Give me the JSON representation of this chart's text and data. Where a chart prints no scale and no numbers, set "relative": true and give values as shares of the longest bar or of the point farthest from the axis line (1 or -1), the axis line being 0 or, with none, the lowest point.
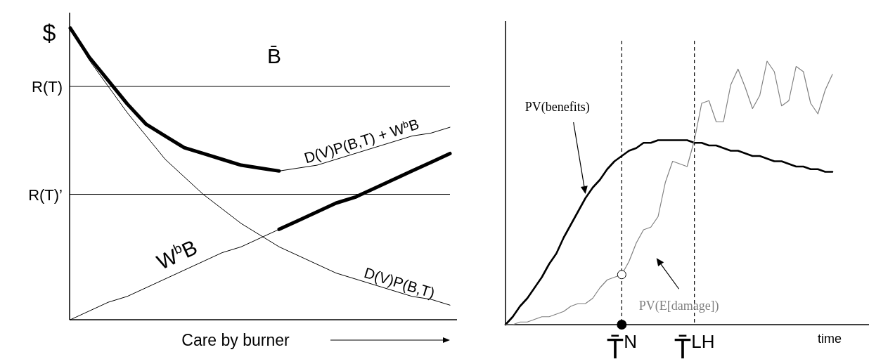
{
  "chart_data": [
    {
      "type": "line",
      "relative": true,
      "ylabel": "$",
      "xlabel": "Care by burner",
      "annotations": [
        "B̄"
      ],
      "categories": [
        null,
        null,
        null,
        null,
        null,
        null,
        null,
        null,
        null,
        null,
        null,
        null,
        null,
        null,
        null,
        null,
        null,
        null,
        null,
        null,
        null
      ],
      "series": [
        {
          "name": "D(V)P(B,T)",
          "color": "#000000",
          "values": [
            1.0,
            0.89,
            0.8,
            0.71,
            0.63,
            0.55,
            0.49,
            0.43,
            0.38,
            0.33,
            0.29,
            0.25,
            0.22,
            0.19,
            0.16,
            0.14,
            0.12,
            0.1,
            0.08,
            0.07,
            0.05
          ]
        },
        {
          "name": "W$^{b}$B",
          "color": "#000000",
          "values": [
            0,
            0.03,
            0.06,
            0.08,
            0.11,
            0.14,
            0.17,
            0.2,
            0.23,
            0.25,
            0.28,
            0.31,
            null,
            null,
            null,
            null,
            null,
            null,
            null,
            null,
            null
          ]
        },
        {
          "color": "#000000",
          "values": [
            null,
            null,
            null,
            null,
            null,
            null,
            null,
            null,
            null,
            null,
            null,
            0.31,
            0.34,
            0.37,
            0.4,
            0.42,
            0.45,
            0.48,
            0.51,
            0.54,
            0.57
          ]
        },
        {
          "color": "#000000",
          "values": [
            1.0,
            0.9,
            0.82,
            0.74,
            0.67,
            0.63,
            0.59,
            0.57,
            0.55,
            0.53,
            0.52,
            0.51,
            null,
            null,
            null,
            null,
            null,
            null,
            null,
            null,
            null
          ]
        },
        {
          "name": "D(V)P(B,T) + W$^{b}$B",
          "color": "#000000",
          "values": [
            null,
            null,
            null,
            null,
            null,
            null,
            null,
            null,
            null,
            null,
            null,
            0.51,
            0.52,
            0.53,
            0.55,
            0.57,
            0.59,
            0.61,
            0.63,
            0.64,
            0.66
          ]
        }
      ],
      "ref_lines": [
        {
          "axis": "y",
          "value": 0.8,
          "label": "R(T)"
        },
        {
          "axis": "y",
          "value": 0.43,
          "label": "R(T)’"
        }
      ]
    },
    {
      "type": "line",
      "relative": true,
      "xlabel": "time",
      "categories": [
        null,
        null,
        null,
        null,
        null,
        null,
        null,
        null,
        null,
        null,
        null,
        null,
        null,
        null,
        null,
        null,
        "T̄$^{N}$",
        null,
        null,
        null,
        null,
        null,
        null,
        null,
        null,
        null,
        "T̄$^{LH}$",
        null,
        null,
        null,
        null,
        null,
        null,
        null,
        null,
        null,
        null,
        null,
        null,
        null,
        null,
        null,
        null,
        null,
        null,
        null
      ],
      "series": [
        {
          "name": "PV(benefits)",
          "color": "#000000",
          "values": [
            0,
            0.03,
            0.07,
            0.1,
            0.14,
            0.18,
            0.23,
            0.27,
            0.33,
            0.38,
            0.43,
            0.48,
            0.52,
            0.55,
            0.59,
            0.62,
            0.64,
            0.66,
            0.67,
            0.69,
            0.69,
            0.7,
            0.7,
            0.7,
            0.7,
            0.7,
            0.69,
            0.69,
            0.68,
            0.68,
            0.67,
            0.66,
            0.66,
            0.65,
            0.64,
            0.64,
            0.63,
            0.62,
            0.62,
            0.61,
            0.6,
            0.6,
            0.59,
            0.59,
            0.58,
            0.58
          ]
        },
        {
          "name": "PV(E[damage])",
          "color": "#808080",
          "values": [
            0,
            0.0,
            0.01,
            0.01,
            0.02,
            0.03,
            0.03,
            0.04,
            0.05,
            0.07,
            0.08,
            0.08,
            0.1,
            0.14,
            0.17,
            0.18,
            0.19,
            0.24,
            0.31,
            0.36,
            0.37,
            0.41,
            0.54,
            0.62,
            0.61,
            0.6,
            0.7,
            0.84,
            0.85,
            0.77,
            0.77,
            0.91,
            0.97,
            0.9,
            0.82,
            0.87,
            1.0,
            0.96,
            0.83,
            0.85,
            0.98,
            0.96,
            0.84,
            0.8,
            0.89,
            0.95
          ]
        }
      ],
      "ref_lines": [
        {
          "axis": "x",
          "value": "T̄$^{N}$",
          "line_style": "dashed"
        },
        {
          "axis": "x",
          "value": "T̄$^{LH}$",
          "line_style": "dashed"
        }
      ]
    }
  ]
}
